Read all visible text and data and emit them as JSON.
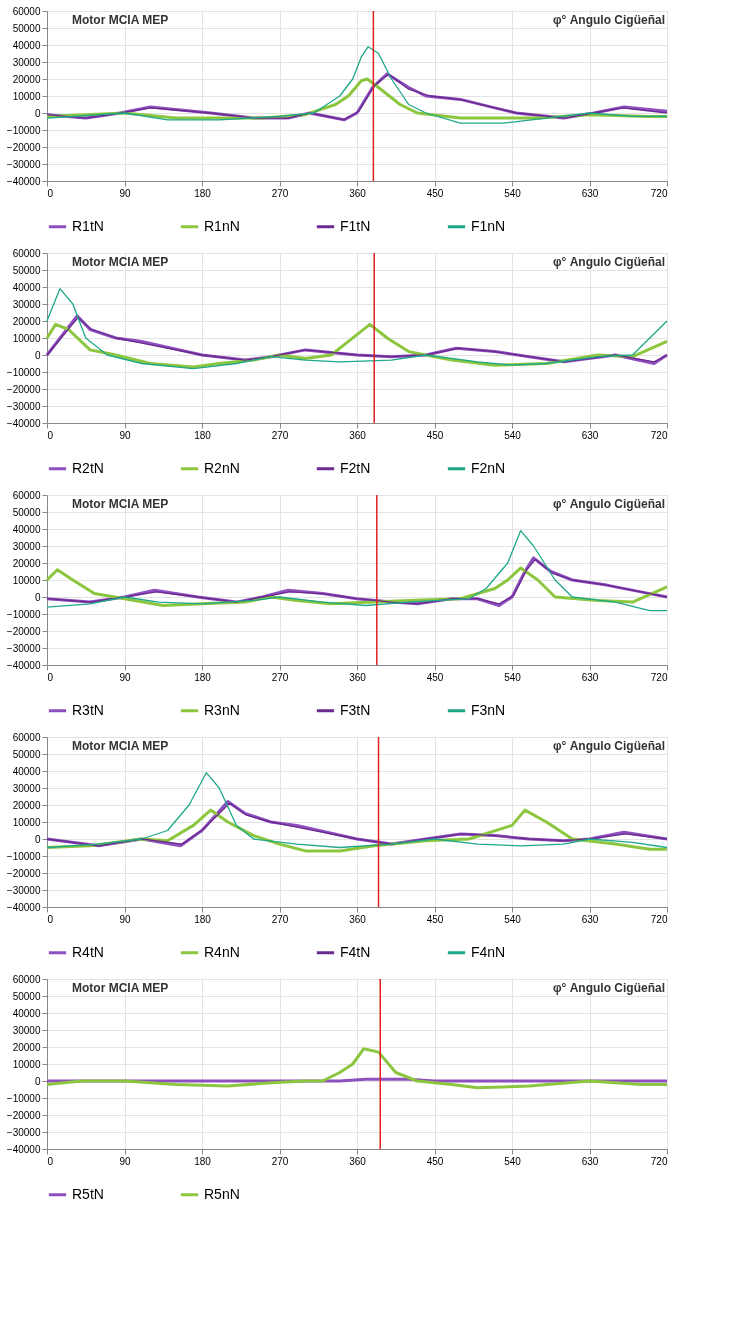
{
  "chart_data": [
    {
      "type": "line",
      "title": "Motor MCIA MEP",
      "xlabel": "φ° Angulo Cigüeñal",
      "xlim": [
        0,
        720
      ],
      "xticks": [
        0,
        90,
        180,
        270,
        360,
        450,
        540,
        630,
        720
      ],
      "ylim": [
        -40000,
        60000
      ],
      "yticks": [
        -40000,
        -30000,
        -20000,
        -10000,
        0,
        10000,
        20000,
        30000,
        40000,
        50000,
        60000
      ],
      "grid": true,
      "legend": "bottom",
      "marker": "none",
      "ref_lines": [
        {
          "axis": "x",
          "value": 379,
          "color": "#e02020"
        }
      ],
      "series": [
        {
          "name": "R1tN",
          "color": "#8e4fbf",
          "x": [
            0,
            45,
            85,
            120,
            190,
            240,
            280,
            305,
            345,
            360,
            378,
            395,
            420,
            440,
            480,
            520,
            545,
            600,
            635,
            670,
            720
          ],
          "values": [
            -1000,
            -3000,
            0,
            3500,
            0,
            -3000,
            -3000,
            0,
            -4000,
            0,
            15000,
            23000,
            15000,
            10000,
            8000,
            3000,
            0,
            -3000,
            0,
            3500,
            1000
          ]
        },
        {
          "name": "R1nN",
          "color": "#8cc63f",
          "x": [
            0,
            90,
            150,
            250,
            300,
            335,
            350,
            365,
            372,
            385,
            410,
            430,
            480,
            570,
            630,
            700,
            720
          ],
          "values": [
            -2000,
            0,
            -3000,
            -3000,
            -1000,
            5000,
            10000,
            19000,
            20000,
            15000,
            5000,
            0,
            -3000,
            -3000,
            -1000,
            -2000,
            -2000
          ]
        },
        {
          "name": "F1tN",
          "color": "#6a2a8e",
          "x": [
            0,
            45,
            85,
            120,
            190,
            240,
            280,
            305,
            345,
            362,
            380,
            397,
            420,
            445,
            480,
            520,
            545,
            600,
            635,
            668,
            720
          ],
          "values": [
            -1000,
            -3000,
            0,
            3000,
            0,
            -3000,
            -3000,
            0,
            -4000,
            1000,
            16000,
            23000,
            14000,
            10000,
            8000,
            3000,
            0,
            -3000,
            0,
            3000,
            0
          ]
        },
        {
          "name": "F1nN",
          "color": "#1fa78a",
          "x": [
            0,
            90,
            140,
            200,
            270,
            310,
            340,
            355,
            365,
            373,
            385,
            400,
            420,
            440,
            480,
            530,
            580,
            630,
            680,
            720
          ],
          "values": [
            -3000,
            0,
            -4000,
            -4000,
            -2000,
            0,
            10000,
            20000,
            33000,
            39000,
            35000,
            20000,
            5000,
            0,
            -6000,
            -6000,
            -3000,
            0,
            -2000,
            -2000
          ]
        }
      ]
    },
    {
      "type": "line",
      "title": "Motor MCIA MEP",
      "xlabel": "φ° Angulo Cigüeñal",
      "xlim": [
        0,
        720
      ],
      "xticks": [
        0,
        90,
        180,
        270,
        360,
        450,
        540,
        630,
        720
      ],
      "ylim": [
        -40000,
        60000
      ],
      "yticks": [
        -40000,
        -30000,
        -20000,
        -10000,
        0,
        10000,
        20000,
        30000,
        40000,
        50000,
        60000
      ],
      "grid": true,
      "legend": "bottom",
      "marker": "none",
      "ref_lines": [
        {
          "axis": "x",
          "value": 380,
          "color": "#e02020"
        }
      ],
      "series": [
        {
          "name": "R2tN",
          "color": "#8e4fbf",
          "x": [
            0,
            35,
            50,
            80,
            110,
            180,
            230,
            260,
            300,
            360,
            400,
            440,
            475,
            520,
            560,
            600,
            660,
            705,
            720
          ],
          "values": [
            0,
            23000,
            15000,
            10000,
            8000,
            0,
            -3000,
            -1000,
            3000,
            0,
            -1000,
            0,
            4000,
            2000,
            -1000,
            -4000,
            0,
            -5000,
            0
          ]
        },
        {
          "name": "R2nN",
          "color": "#8cc63f",
          "x": [
            0,
            10,
            25,
            50,
            80,
            120,
            170,
            200,
            240,
            270,
            300,
            330,
            350,
            375,
            395,
            420,
            440,
            470,
            520,
            580,
            640,
            680,
            720
          ],
          "values": [
            10000,
            18000,
            15000,
            3000,
            0,
            -5000,
            -7000,
            -5000,
            -3000,
            0,
            -2000,
            0,
            8000,
            18000,
            10000,
            2000,
            0,
            -3000,
            -6000,
            -5000,
            0,
            -1000,
            8000
          ]
        },
        {
          "name": "F2tN",
          "color": "#6a2a8e",
          "x": [
            0,
            36,
            52,
            80,
            110,
            180,
            230,
            260,
            300,
            360,
            400,
            440,
            478,
            520,
            560,
            600,
            660,
            705,
            720
          ],
          "values": [
            0,
            22000,
            15000,
            10000,
            7000,
            0,
            -3000,
            -1000,
            3000,
            0,
            -1000,
            0,
            4000,
            2000,
            -1000,
            -4000,
            0,
            -4000,
            0
          ]
        },
        {
          "name": "F2nN",
          "color": "#1fa78a",
          "x": [
            0,
            15,
            30,
            45,
            70,
            110,
            170,
            220,
            260,
            300,
            340,
            400,
            440,
            500,
            540,
            580,
            640,
            680,
            720
          ],
          "values": [
            20000,
            39000,
            30000,
            10000,
            0,
            -5000,
            -8000,
            -5000,
            -1000,
            -3000,
            -4000,
            -3000,
            0,
            -4000,
            -6000,
            -5000,
            -1000,
            0,
            20000
          ]
        }
      ]
    },
    {
      "type": "line",
      "title": "Motor MCIA MEP",
      "xlabel": "φ° Angulo Cigüeñal",
      "xlim": [
        0,
        720
      ],
      "xticks": [
        0,
        90,
        180,
        270,
        360,
        450,
        540,
        630,
        720
      ],
      "ylim": [
        -40000,
        60000
      ],
      "yticks": [
        -40000,
        -30000,
        -20000,
        -10000,
        0,
        10000,
        20000,
        30000,
        40000,
        50000,
        60000
      ],
      "grid": true,
      "legend": "bottom",
      "marker": "none",
      "ref_lines": [
        {
          "axis": "x",
          "value": 383,
          "color": "#e02020"
        }
      ],
      "series": [
        {
          "name": "R3tN",
          "color": "#8e4fbf",
          "x": [
            0,
            50,
            90,
            125,
            175,
            220,
            250,
            280,
            320,
            360,
            400,
            430,
            470,
            500,
            525,
            540,
            555,
            565,
            585,
            610,
            650,
            700,
            720
          ],
          "values": [
            -1000,
            -3000,
            0,
            4000,
            0,
            -3000,
            0,
            4000,
            2000,
            -1000,
            -3000,
            -4000,
            -1000,
            -1000,
            -5000,
            0,
            15000,
            23000,
            15000,
            10000,
            7000,
            2000,
            0
          ]
        },
        {
          "name": "R3nN",
          "color": "#8cc63f",
          "x": [
            0,
            12,
            30,
            55,
            90,
            135,
            180,
            230,
            260,
            290,
            330,
            420,
            480,
            520,
            535,
            550,
            570,
            590,
            640,
            680,
            720
          ],
          "values": [
            10000,
            16000,
            10000,
            2000,
            -1000,
            -5000,
            -4000,
            -3000,
            0,
            -2000,
            -4000,
            -2000,
            -1000,
            5000,
            10000,
            17000,
            10000,
            0,
            -2000,
            -3000,
            6000
          ]
        },
        {
          "name": "F3tN",
          "color": "#6a2a8e",
          "x": [
            0,
            50,
            90,
            127,
            175,
            220,
            250,
            282,
            320,
            360,
            400,
            430,
            470,
            500,
            525,
            542,
            557,
            567,
            587,
            610,
            650,
            700,
            720
          ],
          "values": [
            -1000,
            -3000,
            0,
            3000,
            0,
            -3000,
            0,
            3000,
            2000,
            -1000,
            -3000,
            -4000,
            -1000,
            -1000,
            -4000,
            1000,
            16000,
            22000,
            14000,
            10000,
            7000,
            2000,
            0
          ]
        },
        {
          "name": "F3nN",
          "color": "#1fa78a",
          "x": [
            0,
            50,
            90,
            130,
            180,
            240,
            270,
            320,
            370,
            420,
            490,
            510,
            535,
            550,
            565,
            590,
            610,
            660,
            700,
            720
          ],
          "values": [
            -6000,
            -4000,
            0,
            -3000,
            -4000,
            -2000,
            0,
            -3000,
            -5000,
            -3000,
            -1000,
            5000,
            20000,
            39000,
            30000,
            10000,
            0,
            -3000,
            -8000,
            -8000
          ]
        }
      ]
    },
    {
      "type": "line",
      "title": "Motor MCIA MEP",
      "xlabel": "φ° Angulo Cigüeñal",
      "xlim": [
        0,
        720
      ],
      "xticks": [
        0,
        90,
        180,
        270,
        360,
        450,
        540,
        630,
        720
      ],
      "ylim": [
        -40000,
        60000
      ],
      "yticks": [
        -40000,
        -30000,
        -20000,
        -10000,
        0,
        10000,
        20000,
        30000,
        40000,
        50000,
        60000
      ],
      "grid": true,
      "legend": "bottom",
      "marker": "none",
      "ref_lines": [
        {
          "axis": "x",
          "value": 385,
          "color": "#e02020"
        }
      ],
      "series": [
        {
          "name": "R4tN",
          "color": "#8e4fbf",
          "x": [
            0,
            60,
            110,
            155,
            180,
            210,
            230,
            260,
            290,
            360,
            400,
            440,
            480,
            520,
            560,
            600,
            630,
            670,
            720
          ],
          "values": [
            0,
            -4000,
            0,
            -4000,
            5000,
            22000,
            15000,
            10000,
            8000,
            0,
            -3000,
            0,
            3000,
            2000,
            0,
            -1000,
            0,
            4000,
            0
          ]
        },
        {
          "name": "R4nN",
          "color": "#8cc63f",
          "x": [
            0,
            50,
            110,
            140,
            170,
            190,
            210,
            240,
            270,
            300,
            340,
            380,
            440,
            490,
            540,
            555,
            580,
            610,
            660,
            700,
            720
          ],
          "values": [
            -5000,
            -4000,
            0,
            -1000,
            8000,
            17000,
            10000,
            2000,
            -3000,
            -7000,
            -7000,
            -4000,
            -1000,
            0,
            8000,
            17000,
            10000,
            0,
            -3000,
            -6000,
            -6000
          ]
        },
        {
          "name": "F4tN",
          "color": "#6a2a8e",
          "x": [
            0,
            60,
            110,
            157,
            182,
            212,
            232,
            260,
            290,
            360,
            400,
            440,
            482,
            520,
            560,
            600,
            630,
            672,
            720
          ],
          "values": [
            0,
            -4000,
            0,
            -3000,
            6000,
            21000,
            14000,
            10000,
            7000,
            0,
            -3000,
            0,
            3000,
            2000,
            0,
            -1000,
            0,
            3000,
            0
          ]
        },
        {
          "name": "F4nN",
          "color": "#1fa78a",
          "x": [
            0,
            60,
            110,
            140,
            165,
            185,
            200,
            220,
            240,
            290,
            340,
            400,
            450,
            500,
            550,
            600,
            630,
            680,
            720
          ],
          "values": [
            -5000,
            -3000,
            0,
            5000,
            20000,
            39000,
            30000,
            8000,
            0,
            -3000,
            -5000,
            -3000,
            0,
            -3000,
            -4000,
            -3000,
            0,
            -2000,
            -5000
          ]
        }
      ]
    },
    {
      "type": "line",
      "title": "Motor MCIA MEP",
      "xlabel": "φ° Angulo Cigüeñal",
      "xlim": [
        0,
        720
      ],
      "xticks": [
        0,
        90,
        180,
        270,
        360,
        450,
        540,
        630,
        720
      ],
      "ylim": [
        -40000,
        60000
      ],
      "yticks": [
        -40000,
        -30000,
        -20000,
        -10000,
        0,
        10000,
        20000,
        30000,
        40000,
        50000,
        60000
      ],
      "grid": true,
      "legend": "bottom",
      "marker": "none",
      "ref_lines": [
        {
          "axis": "x",
          "value": 387,
          "color": "#e02020"
        }
      ],
      "series": [
        {
          "name": "R5tN",
          "color": "#8e4fbf",
          "x": [
            0,
            340,
            370,
            420,
            450,
            720
          ],
          "values": [
            0,
            0,
            1000,
            1000,
            0,
            0
          ]
        },
        {
          "name": "R5nN",
          "color": "#8cc63f",
          "x": [
            0,
            40,
            90,
            150,
            210,
            260,
            300,
            320,
            340,
            355,
            368,
            385,
            405,
            430,
            470,
            500,
            560,
            630,
            690,
            720
          ],
          "values": [
            -2000,
            0,
            0,
            -2000,
            -3000,
            -1000,
            0,
            0,
            5000,
            10000,
            19000,
            17000,
            5000,
            0,
            -2000,
            -4000,
            -3000,
            0,
            -2000,
            -2000
          ]
        }
      ]
    }
  ]
}
